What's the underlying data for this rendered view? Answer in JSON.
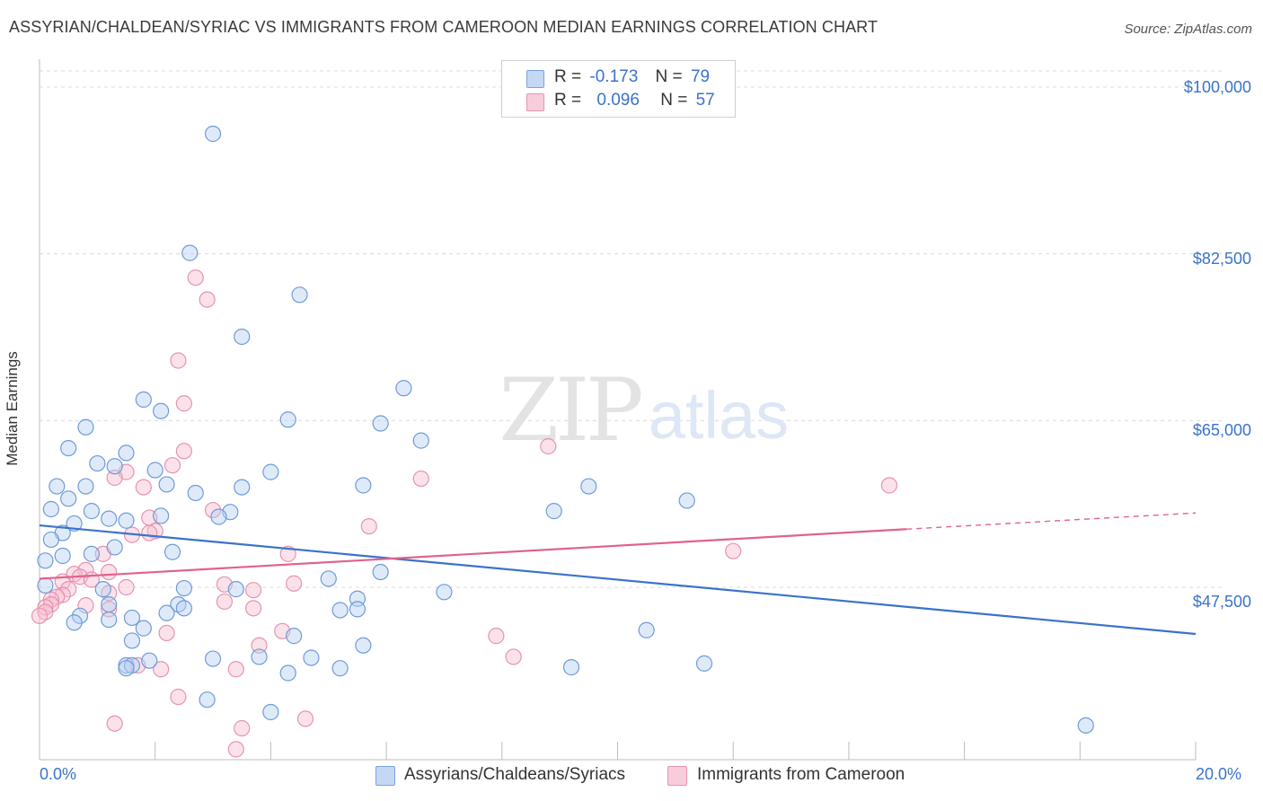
{
  "title": "ASSYRIAN/CHALDEAN/SYRIAC VS IMMIGRANTS FROM CAMEROON MEDIAN EARNINGS CORRELATION CHART",
  "source": "Source: ZipAtlas.com",
  "colors": {
    "blue": "#3a73c8",
    "pink": "#e0628e",
    "blue_fill": "#b9d1f2",
    "pink_fill": "#f6bfd0"
  },
  "legend": {
    "rows": [
      {
        "r_label": "R =",
        "r_value": "-0.173",
        "n_label": "N =",
        "n_value": "79"
      },
      {
        "r_label": "R =",
        "r_value": "0.096",
        "n_label": "N =",
        "n_value": "57"
      }
    ]
  },
  "chart_data": {
    "type": "scatter",
    "title": "ASSYRIAN/CHALDEAN/SYRIAC VS IMMIGRANTS FROM CAMEROON MEDIAN EARNINGS CORRELATION CHART",
    "xlabel": "",
    "ylabel": "Median Earnings",
    "xlim": [
      0,
      20
    ],
    "ylim": [
      32000,
      102000
    ],
    "x_tick_labels": [
      "0.0%",
      "20.0%"
    ],
    "y_ticks": [
      47500,
      65000,
      82500,
      100000
    ],
    "y_tick_labels": [
      "$47,500",
      "$65,000",
      "$82,500",
      "$100,000"
    ],
    "grid": true,
    "legend_position": "top-center",
    "series": [
      {
        "name": "Assyrians/Chaldeans/Syriacs",
        "r": -0.173,
        "n": 79,
        "trend": {
          "x0": 0,
          "y0": 54000,
          "x1": 20,
          "y1": 42600
        },
        "points": [
          [
            3.0,
            95100
          ],
          [
            2.6,
            82600
          ],
          [
            4.5,
            78200
          ],
          [
            3.5,
            73800
          ],
          [
            6.3,
            68400
          ],
          [
            1.8,
            67200
          ],
          [
            2.1,
            66000
          ],
          [
            4.3,
            65100
          ],
          [
            5.9,
            64700
          ],
          [
            0.8,
            64300
          ],
          [
            6.6,
            62900
          ],
          [
            0.5,
            62100
          ],
          [
            1.5,
            61600
          ],
          [
            1.0,
            60500
          ],
          [
            1.3,
            60200
          ],
          [
            4.0,
            59600
          ],
          [
            2.0,
            59800
          ],
          [
            0.3,
            58100
          ],
          [
            0.8,
            58100
          ],
          [
            2.2,
            58300
          ],
          [
            3.5,
            58000
          ],
          [
            5.6,
            58200
          ],
          [
            9.5,
            58100
          ],
          [
            2.7,
            57400
          ],
          [
            0.5,
            56800
          ],
          [
            11.2,
            56600
          ],
          [
            0.2,
            55700
          ],
          [
            0.9,
            55500
          ],
          [
            3.3,
            55400
          ],
          [
            8.9,
            55500
          ],
          [
            2.1,
            55000
          ],
          [
            1.2,
            54700
          ],
          [
            1.5,
            54500
          ],
          [
            3.1,
            54900
          ],
          [
            0.6,
            54200
          ],
          [
            0.4,
            53200
          ],
          [
            0.2,
            52500
          ],
          [
            1.3,
            51700
          ],
          [
            2.3,
            51200
          ],
          [
            0.9,
            51000
          ],
          [
            0.4,
            50800
          ],
          [
            0.1,
            50300
          ],
          [
            5.9,
            49100
          ],
          [
            5.0,
            48400
          ],
          [
            0.1,
            47700
          ],
          [
            1.1,
            47300
          ],
          [
            2.5,
            47400
          ],
          [
            3.4,
            47300
          ],
          [
            7.0,
            47000
          ],
          [
            5.5,
            46300
          ],
          [
            2.4,
            45700
          ],
          [
            1.2,
            45700
          ],
          [
            2.5,
            45300
          ],
          [
            5.5,
            45200
          ],
          [
            5.2,
            45100
          ],
          [
            2.2,
            44800
          ],
          [
            0.7,
            44500
          ],
          [
            1.6,
            44300
          ],
          [
            1.2,
            44100
          ],
          [
            0.6,
            43800
          ],
          [
            1.8,
            43200
          ],
          [
            10.5,
            43000
          ],
          [
            4.4,
            42400
          ],
          [
            1.6,
            41900
          ],
          [
            5.6,
            41400
          ],
          [
            3.0,
            40000
          ],
          [
            3.8,
            40200
          ],
          [
            4.7,
            40100
          ],
          [
            1.9,
            39800
          ],
          [
            1.5,
            39300
          ],
          [
            1.6,
            39300
          ],
          [
            11.5,
            39500
          ],
          [
            1.5,
            39000
          ],
          [
            9.2,
            39100
          ],
          [
            5.2,
            39000
          ],
          [
            4.3,
            38500
          ],
          [
            2.9,
            35700
          ],
          [
            4.0,
            34400
          ],
          [
            18.1,
            33000
          ]
        ]
      },
      {
        "name": "Immigrants from Cameroon",
        "r": 0.096,
        "n": 57,
        "trend": {
          "x0": 0,
          "y0": 48400,
          "x1": 15,
          "y1": 53600
        },
        "trend_dashed": {
          "x0": 15,
          "y0": 53600,
          "x1": 20,
          "y1": 55300
        },
        "points": [
          [
            2.7,
            80000
          ],
          [
            2.9,
            77700
          ],
          [
            2.4,
            71300
          ],
          [
            2.5,
            66800
          ],
          [
            8.8,
            62300
          ],
          [
            2.5,
            61800
          ],
          [
            2.3,
            60300
          ],
          [
            1.5,
            59600
          ],
          [
            1.3,
            59000
          ],
          [
            6.6,
            58900
          ],
          [
            14.7,
            58200
          ],
          [
            1.8,
            58000
          ],
          [
            3.0,
            55600
          ],
          [
            1.9,
            54800
          ],
          [
            5.7,
            53900
          ],
          [
            2.0,
            53400
          ],
          [
            1.9,
            53200
          ],
          [
            1.6,
            53000
          ],
          [
            12.0,
            51300
          ],
          [
            1.1,
            51000
          ],
          [
            4.3,
            51000
          ],
          [
            0.8,
            49300
          ],
          [
            1.2,
            49100
          ],
          [
            0.6,
            48900
          ],
          [
            0.7,
            48600
          ],
          [
            0.9,
            48300
          ],
          [
            0.4,
            48100
          ],
          [
            4.4,
            47900
          ],
          [
            3.2,
            47800
          ],
          [
            1.5,
            47500
          ],
          [
            0.5,
            47300
          ],
          [
            3.7,
            47200
          ],
          [
            1.2,
            46900
          ],
          [
            0.4,
            46700
          ],
          [
            0.3,
            46500
          ],
          [
            0.2,
            46200
          ],
          [
            3.2,
            46000
          ],
          [
            0.2,
            45700
          ],
          [
            0.8,
            45600
          ],
          [
            0.1,
            45400
          ],
          [
            3.7,
            45300
          ],
          [
            1.2,
            45200
          ],
          [
            0.1,
            44900
          ],
          [
            0.0,
            44500
          ],
          [
            4.2,
            42900
          ],
          [
            2.2,
            42700
          ],
          [
            7.9,
            42400
          ],
          [
            3.8,
            41400
          ],
          [
            8.2,
            40200
          ],
          [
            1.7,
            39300
          ],
          [
            2.1,
            38900
          ],
          [
            3.4,
            38900
          ],
          [
            2.4,
            36000
          ],
          [
            1.3,
            33200
          ],
          [
            4.6,
            33700
          ],
          [
            3.5,
            32700
          ],
          [
            3.4,
            30500
          ]
        ]
      }
    ]
  },
  "bottom_legend": {
    "items": [
      {
        "label": "Assyrians/Chaldeans/Syriacs"
      },
      {
        "label": "Immigrants from Cameroon"
      }
    ]
  }
}
